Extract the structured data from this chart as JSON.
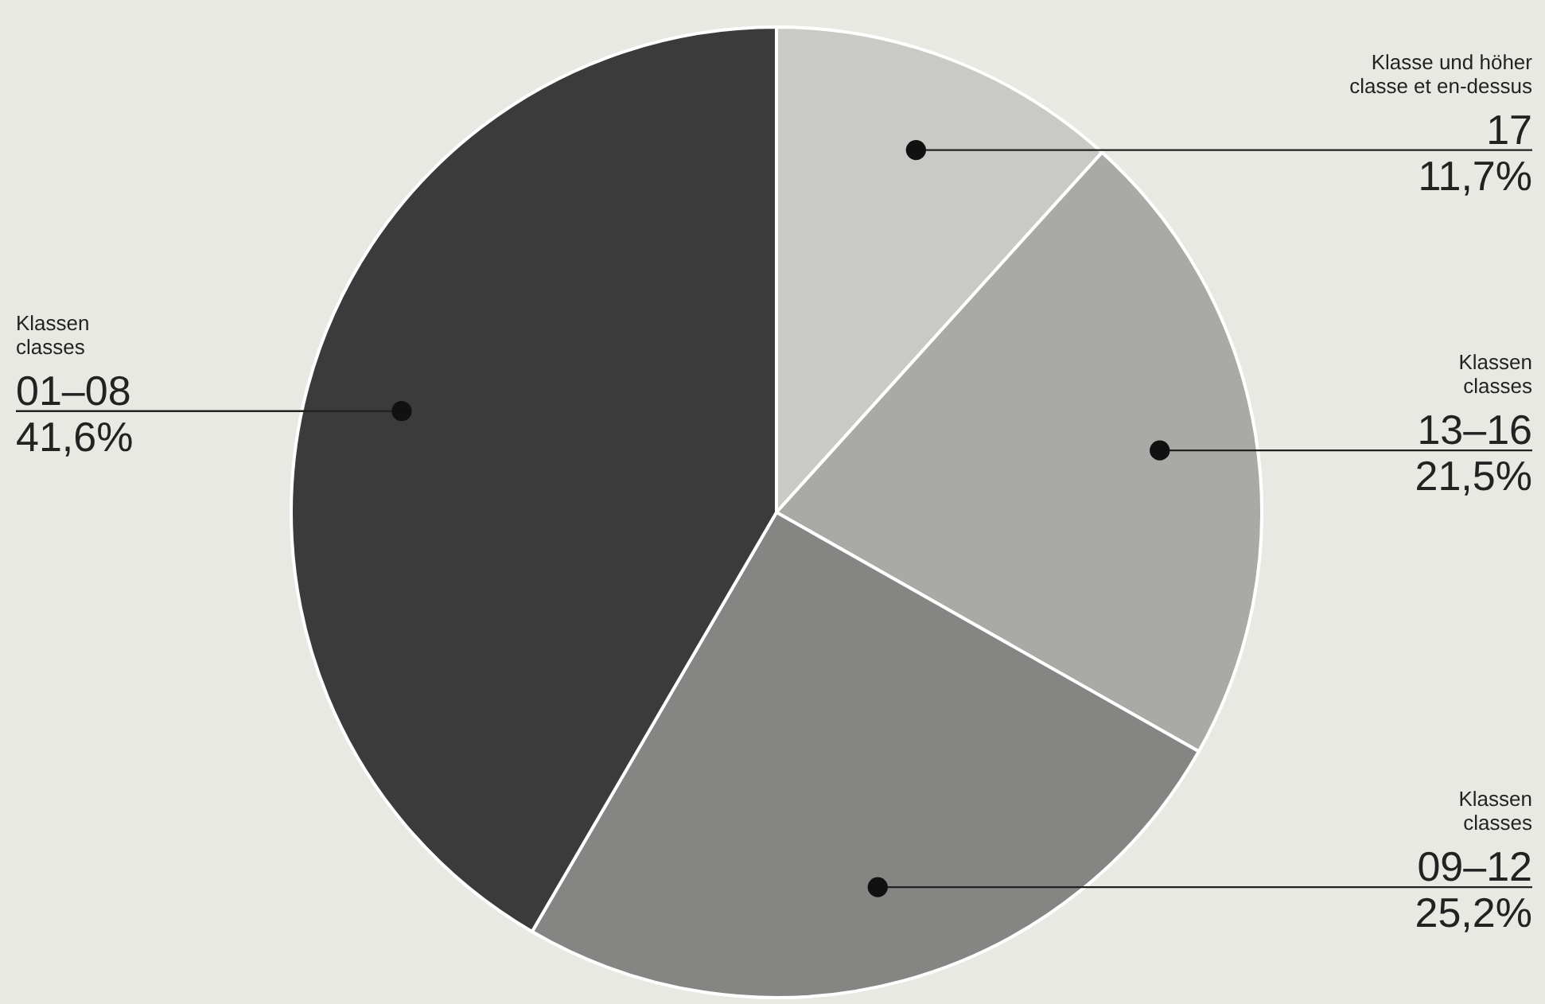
{
  "chart_data": {
    "type": "pie",
    "categories": [
      "Klasse und höher\nclasse et en-dessus\n17",
      "Klassen\nclasses\n13–16",
      "Klassen\nclasses\n09–12",
      "Klassen\nclasses\n01–08"
    ],
    "values": [
      11.7,
      21.5,
      25.2,
      41.6
    ],
    "value_labels": [
      "11,7%",
      "21,5%",
      "25,2%",
      "41,6%"
    ],
    "colors": [
      "#c9c9c5",
      "#a9a9a6",
      "#858583",
      "#3b3b3b"
    ]
  }
}
